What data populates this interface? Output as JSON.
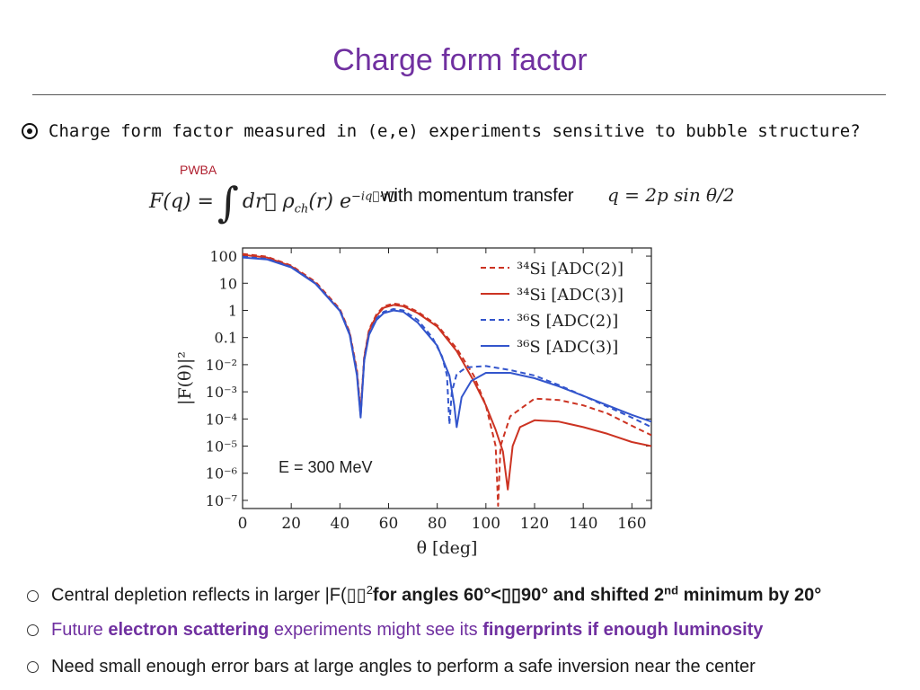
{
  "title": "Charge form factor",
  "question": "Charge form factor measured in (e,e) experiments sensitive to bubble structure?",
  "pwba_label": "PWBA",
  "formula": {
    "lhs": "F(q) =",
    "integrand": "dr⃗ ρ",
    "sub": "ch",
    "tail": "(r) e",
    "exp": "−iq⃗·r⃗"
  },
  "momentum_text": "with momentum transfer",
  "q_formula": "q = 2p sin θ/2",
  "bullets": {
    "b1_pre": "Central depletion reflects in larger |F(",
    "b1_glyph": "▯▯",
    "b1_sup": "2",
    "b1_mid": "for angles 60°<",
    "b1_mid2": "90° and shifted 2",
    "b1_sup2": "nd",
    "b1_end": " minimum by 20°",
    "b2_pre": "Future ",
    "b2_bold": "electron scattering",
    "b2_mid": " experiments might see its ",
    "b2_bold2": "fingerprints if enough luminosity",
    "b3": "Need small enough error bars at large angles to perform a safe inversion near the center"
  },
  "colors": {
    "title": "#7030a0",
    "red": "#cc3322",
    "blue": "#3355cc",
    "accent": "#7030a0"
  },
  "chart_data": {
    "type": "line",
    "xlabel": "θ [deg]",
    "ylabel": "|F(θ)|²",
    "xlim": [
      0,
      168
    ],
    "ylim_log10": [
      -7.3,
      2.3
    ],
    "xticks": [
      "0",
      "20",
      "40",
      "60",
      "80",
      "100",
      "120",
      "140",
      "160"
    ],
    "xtick_values": [
      0,
      20,
      40,
      60,
      80,
      100,
      120,
      140,
      160
    ],
    "yticks": [
      "100",
      "10",
      "1",
      "0.1",
      "10⁻²",
      "10⁻³",
      "10⁻⁴",
      "10⁻⁵",
      "10⁻⁶",
      "10⁻⁷"
    ],
    "ytick_log": [
      2,
      1,
      0,
      -1,
      -2,
      -3,
      -4,
      -5,
      -6,
      -7
    ],
    "annotation": "E = 300 MeV",
    "legend_position": "top-right",
    "series": [
      {
        "name": "³⁴Si [ADC(2)]",
        "color": "#cc3322",
        "dash": true,
        "x": [
          0,
          10,
          20,
          30,
          40,
          44,
          47,
          48.5,
          50,
          52,
          55,
          58,
          62,
          66,
          72,
          80,
          88,
          95,
          100,
          104,
          105,
          106,
          110,
          120,
          130,
          140,
          150,
          160,
          168
        ],
        "log10y": [
          2.08,
          1.98,
          1.65,
          1.05,
          0.05,
          -0.8,
          -2.2,
          -3.7,
          -1.7,
          -0.7,
          -0.15,
          0.15,
          0.25,
          0.2,
          -0.05,
          -0.55,
          -1.4,
          -2.4,
          -3.5,
          -5.0,
          -7.2,
          -5.0,
          -3.9,
          -3.25,
          -3.3,
          -3.5,
          -3.8,
          -4.25,
          -4.6
        ]
      },
      {
        "name": "³⁴Si [ADC(3)]",
        "color": "#cc3322",
        "dash": false,
        "x": [
          0,
          10,
          20,
          30,
          40,
          44,
          47,
          48.5,
          50,
          52,
          55,
          58,
          62,
          66,
          72,
          80,
          88,
          95,
          100,
          104,
          107,
          109,
          111,
          114,
          120,
          130,
          140,
          150,
          160,
          168
        ],
        "log10y": [
          2.05,
          1.95,
          1.62,
          1.0,
          0.0,
          -0.85,
          -2.3,
          -3.85,
          -1.75,
          -0.75,
          -0.2,
          0.1,
          0.2,
          0.15,
          -0.1,
          -0.6,
          -1.5,
          -2.6,
          -3.5,
          -4.4,
          -5.2,
          -6.6,
          -5.0,
          -4.3,
          -4.05,
          -4.1,
          -4.3,
          -4.55,
          -4.85,
          -5.0
        ]
      },
      {
        "name": "³⁶S [ADC(2)]",
        "color": "#3355cc",
        "dash": true,
        "x": [
          0,
          10,
          20,
          30,
          40,
          44,
          47,
          48.5,
          50,
          52,
          55,
          58,
          62,
          66,
          72,
          78,
          82,
          84,
          85,
          86,
          88,
          92,
          100,
          110,
          120,
          130,
          140,
          150,
          160,
          168
        ],
        "log10y": [
          1.98,
          1.9,
          1.6,
          1.0,
          0.0,
          -0.85,
          -2.3,
          -3.9,
          -1.8,
          -0.85,
          -0.3,
          -0.05,
          0.05,
          0.0,
          -0.35,
          -1.0,
          -1.7,
          -2.4,
          -4.2,
          -3.0,
          -2.35,
          -2.1,
          -2.05,
          -2.2,
          -2.4,
          -2.75,
          -3.15,
          -3.55,
          -3.95,
          -4.3
        ]
      },
      {
        "name": "³⁶S [ADC(3)]",
        "color": "#3355cc",
        "dash": false,
        "x": [
          0,
          10,
          20,
          30,
          40,
          44,
          47,
          48.5,
          50,
          52,
          55,
          58,
          62,
          66,
          72,
          80,
          85,
          87,
          88,
          90,
          94,
          100,
          110,
          120,
          130,
          140,
          150,
          160,
          168
        ],
        "log10y": [
          1.95,
          1.88,
          1.58,
          0.98,
          -0.02,
          -0.9,
          -2.4,
          -3.95,
          -1.85,
          -0.9,
          -0.35,
          -0.1,
          0.0,
          -0.05,
          -0.45,
          -1.3,
          -2.4,
          -3.5,
          -4.3,
          -3.2,
          -2.6,
          -2.3,
          -2.3,
          -2.5,
          -2.8,
          -3.15,
          -3.5,
          -3.85,
          -4.1
        ]
      }
    ]
  }
}
